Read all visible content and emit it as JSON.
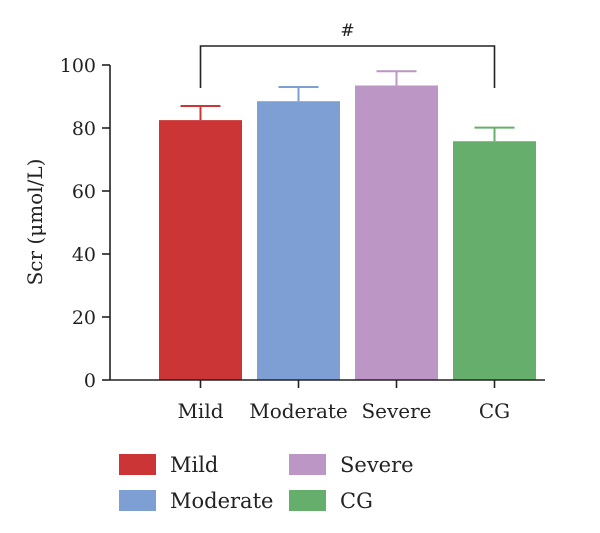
{
  "chart_data": {
    "type": "bar",
    "categories": [
      "Mild",
      "Moderate",
      "Severe",
      "CG"
    ],
    "values": [
      82.5,
      88.5,
      93.5,
      75.8
    ],
    "errors": [
      4.5,
      4.5,
      4.5,
      4.3
    ],
    "colors": [
      "#cc3535",
      "#7e9fd3",
      "#bc96c4",
      "#66ae6c"
    ],
    "ylabel": "Scr (μmol/L)",
    "ylim": [
      0,
      100
    ],
    "yticks": [
      0,
      20,
      40,
      60,
      80,
      100
    ],
    "significance": {
      "label": "#",
      "from": "Mild",
      "to": "CG"
    },
    "legend": {
      "placement": "bottom",
      "entries": [
        "Mild",
        "Moderate",
        "Severe",
        "CG"
      ]
    }
  }
}
